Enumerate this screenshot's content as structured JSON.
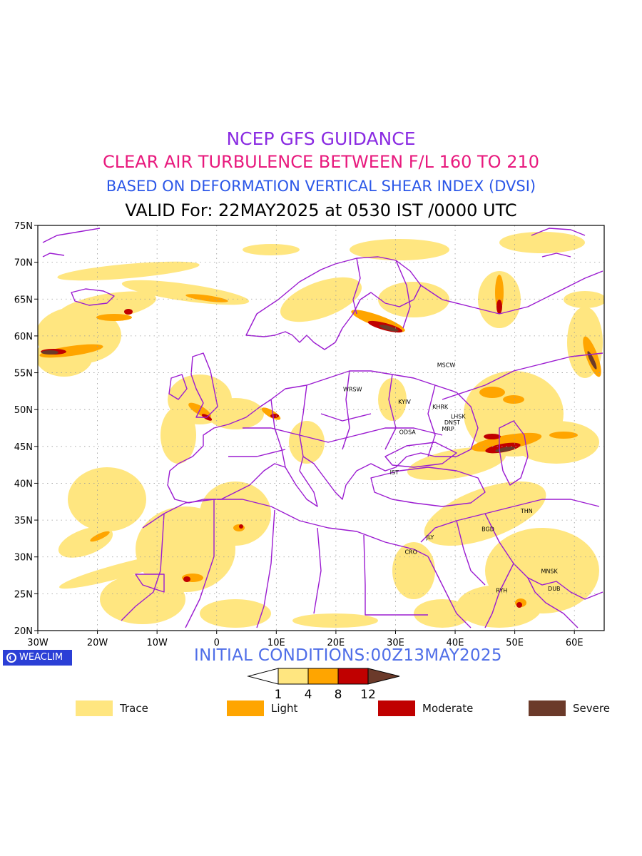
{
  "header": {
    "line1": "NCEP GFS GUIDANCE",
    "line2": "CLEAR AIR TURBULENCE BETWEEN F/L 160 TO 210",
    "line3": "BASED ON DEFORMATION VERTICAL SHEAR INDEX (DVSI)",
    "line4": "VALID For: 22MAY2025 at 0530 IST /0000 UTC"
  },
  "map": {
    "lon_range": [
      -30,
      65
    ],
    "lat_range": [
      20,
      75
    ],
    "lon_ticks": [
      "30W",
      "20W",
      "10W",
      "0",
      "10E",
      "20E",
      "30E",
      "40E",
      "50E",
      "60E"
    ],
    "lat_ticks": [
      "75N",
      "70N",
      "65N",
      "60N",
      "55N",
      "50N",
      "45N",
      "40N",
      "35N",
      "30N",
      "25N",
      "20N"
    ],
    "grid": true,
    "border_color": "#9b1bd1",
    "cities": [
      {
        "code": "MSCW",
        "lon": 38.5,
        "lat": 55.8
      },
      {
        "code": "WRSW",
        "lon": 22.8,
        "lat": 52.5
      },
      {
        "code": "KYIV",
        "lon": 31.5,
        "lat": 50.8
      },
      {
        "code": "KHRK",
        "lon": 37.5,
        "lat": 50.1
      },
      {
        "code": "LHSK",
        "lon": 40.5,
        "lat": 48.8
      },
      {
        "code": "DNST",
        "lon": 39.5,
        "lat": 48.0
      },
      {
        "code": "MRP",
        "lon": 38.8,
        "lat": 47.1
      },
      {
        "code": "ODSA",
        "lon": 32.0,
        "lat": 46.7
      },
      {
        "code": "IST",
        "lon": 29.8,
        "lat": 41.2
      },
      {
        "code": "THN",
        "lon": 52.0,
        "lat": 36.0
      },
      {
        "code": "BGD",
        "lon": 45.5,
        "lat": 33.5
      },
      {
        "code": "JLY",
        "lon": 35.8,
        "lat": 32.4
      },
      {
        "code": "CRO",
        "lon": 32.6,
        "lat": 30.4
      },
      {
        "code": "MNSK",
        "lon": 55.8,
        "lat": 27.8
      },
      {
        "code": "DUB",
        "lon": 56.6,
        "lat": 25.4
      },
      {
        "code": "RYH",
        "lon": 47.8,
        "lat": 25.2
      }
    ]
  },
  "footer": {
    "brand": "WEACLIM",
    "brand_icon": "weaclim-logo-icon",
    "initial_conditions": "INITIAL CONDITIONS:00Z13MAY2025"
  },
  "colorbar": {
    "ticks": [
      "1",
      "4",
      "8",
      "12"
    ],
    "colors": [
      "#ffffff",
      "#ffe680",
      "#ffa500",
      "#c00000",
      "#6b3a2a"
    ]
  },
  "legend": [
    {
      "label": "Trace",
      "color": "#ffe680"
    },
    {
      "label": "Light",
      "color": "#ffa500"
    },
    {
      "label": "Moderate",
      "color": "#c00000"
    },
    {
      "label": "Severe",
      "color": "#6b3a2a"
    }
  ],
  "colors": {
    "trace": "#ffe680",
    "light": "#ffa500",
    "moderate": "#c00000",
    "severe": "#6b3a2a",
    "border": "#9b1bd1"
  }
}
